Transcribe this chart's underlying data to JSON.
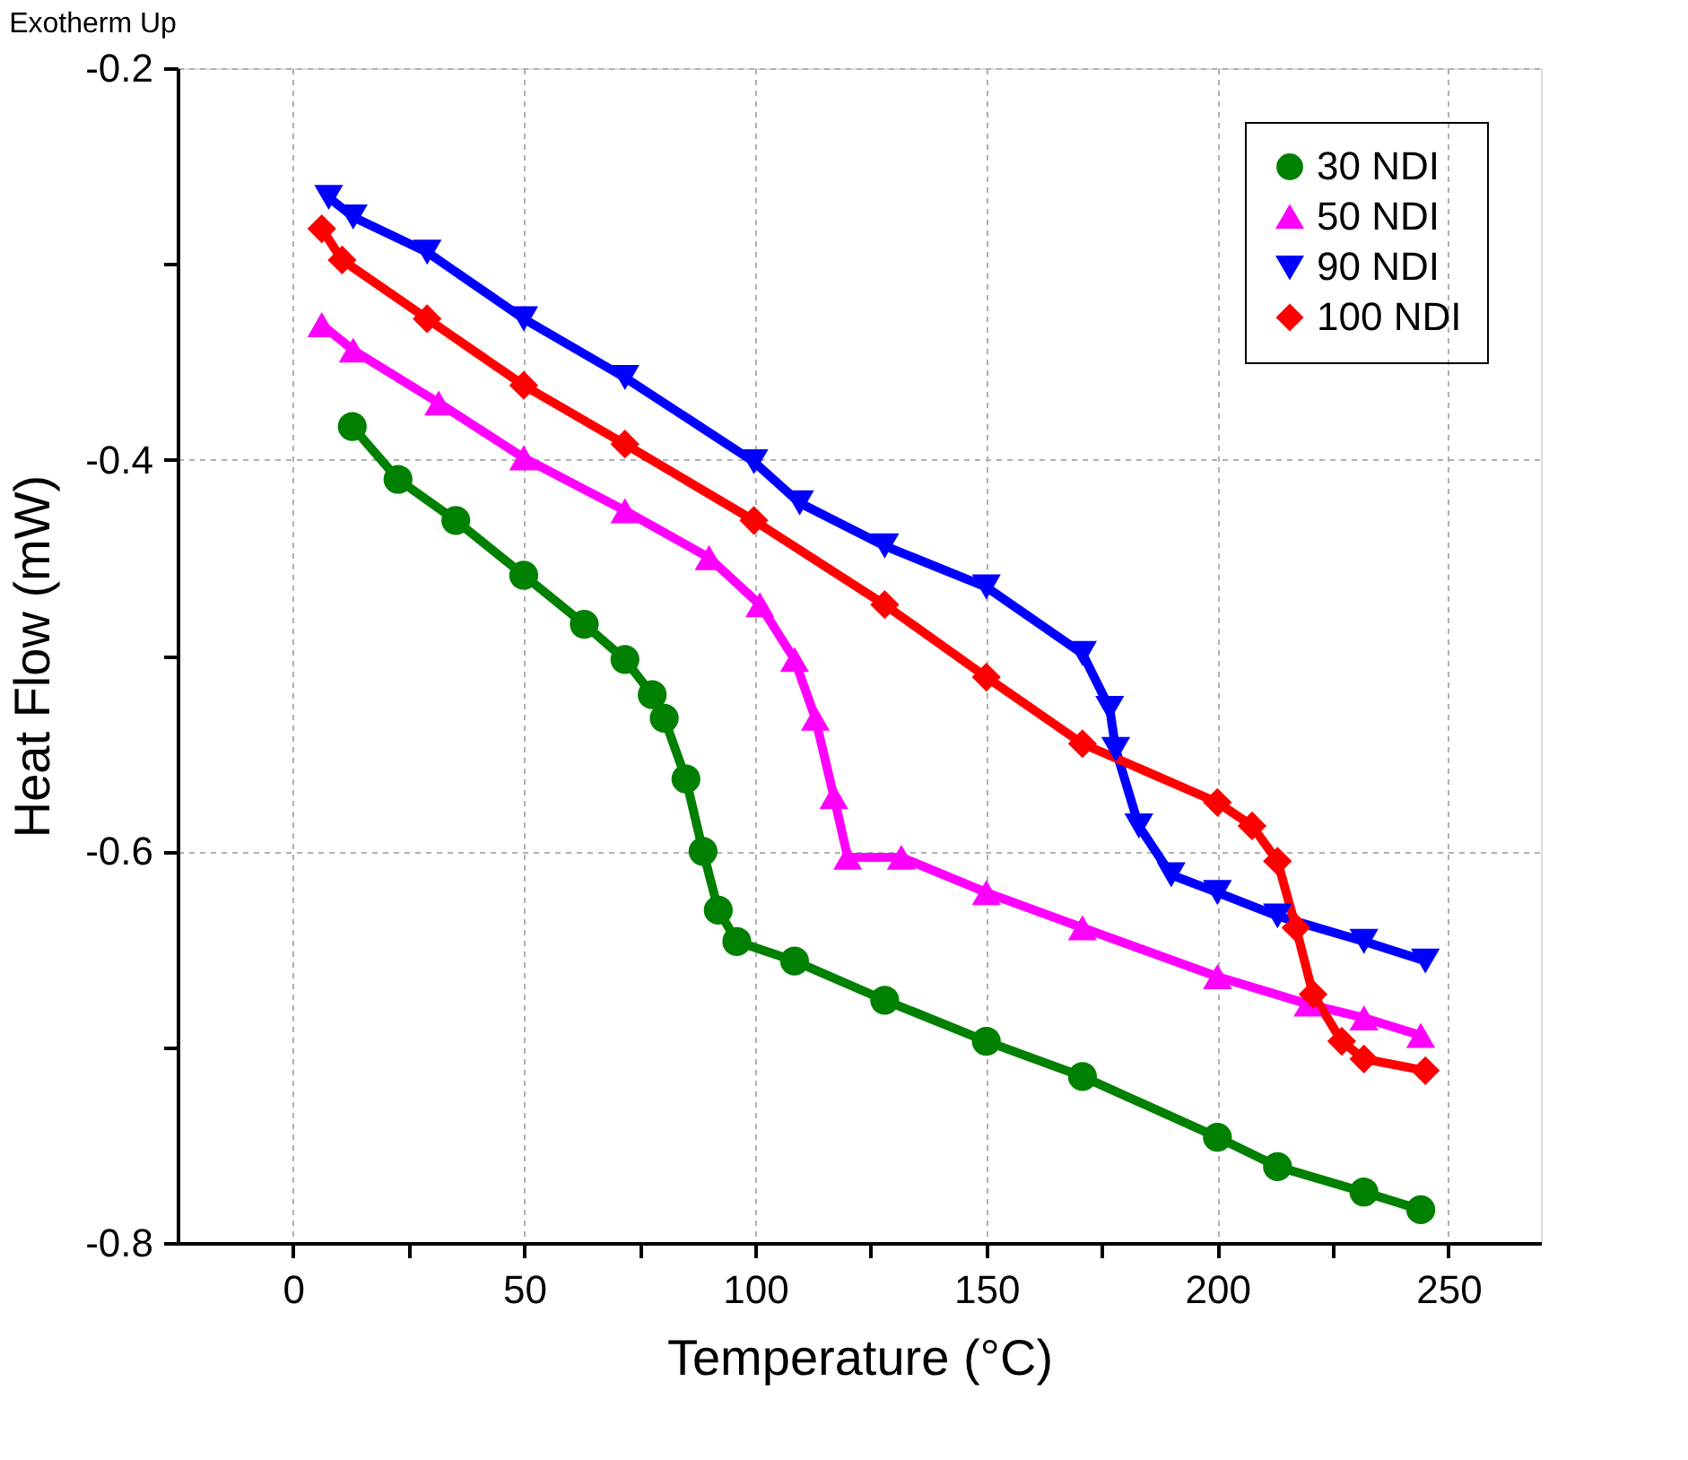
{
  "chart_data": {
    "type": "line",
    "title": "Exotherm Up",
    "xlabel": "Temperature (°C)",
    "ylabel": "Heat Flow (mW)",
    "xlim": [
      -25,
      270
    ],
    "ylim": [
      -0.8,
      -0.2
    ],
    "xticks": [
      0,
      {
        "value": 25,
        "label": null
      },
      50,
      {
        "value": 75,
        "label": null
      },
      100,
      {
        "value": 125,
        "label": null
      },
      150,
      {
        "value": 175,
        "label": null
      },
      200,
      {
        "value": 225,
        "label": null
      },
      250
    ],
    "yticks": [
      -0.8,
      {
        "value": -0.7,
        "label": null
      },
      -0.6,
      {
        "value": -0.5,
        "label": null
      },
      -0.4,
      {
        "value": -0.3,
        "label": null
      },
      -0.2
    ],
    "grid": true,
    "legend": "top right",
    "series": [
      {
        "name": "30 NDI",
        "color": "#008000",
        "marker": "circle",
        "x": [
          12.8,
          22.7,
          35.2,
          49.9,
          63,
          71.8,
          77.7,
          80.3,
          85,
          88.7,
          92,
          96,
          108.5,
          128,
          150,
          170.8,
          200,
          213,
          231.7,
          244
        ],
        "values": [
          -0.383,
          -0.41,
          -0.431,
          -0.459,
          -0.484,
          -0.502,
          -0.52,
          -0.532,
          -0.563,
          -0.6,
          -0.63,
          -0.646,
          -0.656,
          -0.676,
          -0.697,
          -0.715,
          -0.746,
          -0.761,
          -0.774,
          -0.783
        ]
      },
      {
        "name": "50 NDI",
        "color": "#ff00ff",
        "marker": "triangle",
        "x": [
          6.2,
          13,
          31.5,
          49.9,
          71.8,
          90,
          101,
          108.5,
          113,
          117,
          120,
          131.6,
          150,
          170.8,
          200,
          219.6,
          231.7,
          244
        ],
        "values": [
          -0.331,
          -0.344,
          -0.371,
          -0.399,
          -0.426,
          -0.45,
          -0.474,
          -0.502,
          -0.532,
          -0.572,
          -0.603,
          -0.603,
          -0.621,
          -0.639,
          -0.664,
          -0.678,
          -0.685,
          -0.694
        ]
      },
      {
        "name": "90 NDI",
        "color": "#0000ff",
        "marker": "triangle-down",
        "x": [
          7.7,
          13,
          29,
          49.9,
          71.8,
          99.7,
          109.6,
          128,
          150,
          170.8,
          176.7,
          178,
          183,
          190,
          200,
          213,
          231.7,
          245
        ],
        "values": [
          -0.266,
          -0.276,
          -0.294,
          -0.328,
          -0.358,
          -0.401,
          -0.422,
          -0.444,
          -0.465,
          -0.499,
          -0.527,
          -0.548,
          -0.587,
          -0.612,
          -0.621,
          -0.633,
          -0.646,
          -0.656
        ]
      },
      {
        "name": "100 NDI",
        "color": "#ff0000",
        "marker": "diamond",
        "x": [
          6.2,
          10.6,
          29,
          49.9,
          71.8,
          99.7,
          128,
          150,
          170.8,
          200,
          207.5,
          213,
          217,
          220.7,
          226.9,
          231.7,
          245
        ],
        "values": [
          -0.282,
          -0.298,
          -0.328,
          -0.362,
          -0.392,
          -0.431,
          -0.474,
          -0.511,
          -0.545,
          -0.575,
          -0.587,
          -0.605,
          -0.639,
          -0.673,
          -0.697,
          -0.706,
          -0.712
        ]
      }
    ]
  }
}
